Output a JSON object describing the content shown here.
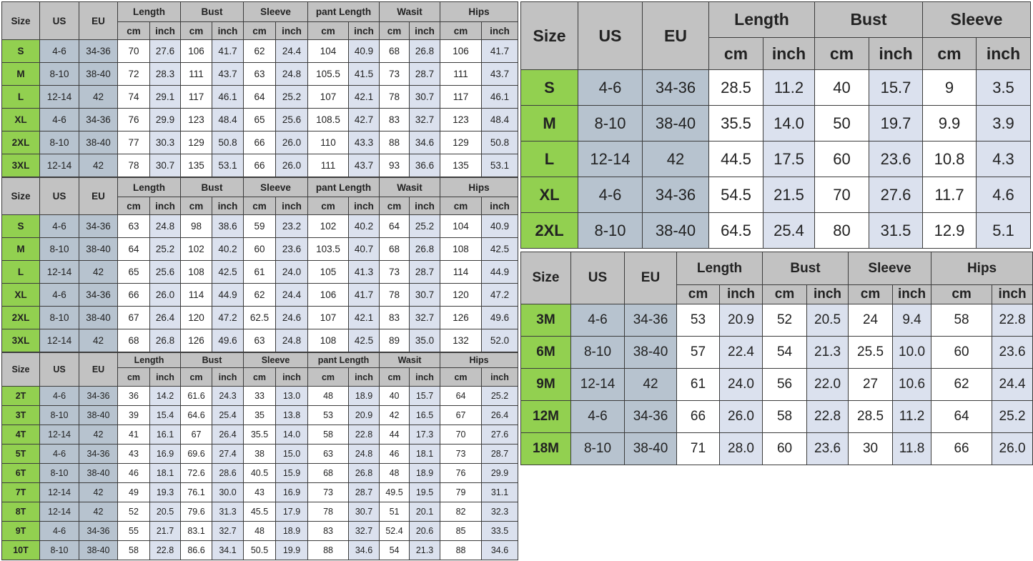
{
  "colors": {
    "header_bg": "#c2c2c2",
    "size_column_green": "#92d050",
    "us_eu_column_blue": "#b7c3cf",
    "cm_column_white": "#ffffff",
    "inch_column_blue": "#dbe1ee",
    "border": "#3c3c3c",
    "text": "#222222"
  },
  "tables": [
    {
      "id": "women-1",
      "base_headers": [
        "Size",
        "US",
        "EU"
      ],
      "groups": [
        "Length",
        "Bust",
        "Sleeve",
        "pant Length",
        "Wasit",
        "Hips"
      ],
      "unit_headers": [
        "cm",
        "inch"
      ],
      "rows": [
        {
          "size": "S",
          "us": "4-6",
          "eu": "34-36",
          "values": [
            "70",
            "27.6",
            "106",
            "41.7",
            "62",
            "24.4",
            "104",
            "40.9",
            "68",
            "26.8",
            "106",
            "41.7"
          ]
        },
        {
          "size": "M",
          "us": "8-10",
          "eu": "38-40",
          "values": [
            "72",
            "28.3",
            "111",
            "43.7",
            "63",
            "24.8",
            "105.5",
            "41.5",
            "73",
            "28.7",
            "111",
            "43.7"
          ]
        },
        {
          "size": "L",
          "us": "12-14",
          "eu": "42",
          "values": [
            "74",
            "29.1",
            "117",
            "46.1",
            "64",
            "25.2",
            "107",
            "42.1",
            "78",
            "30.7",
            "117",
            "46.1"
          ]
        },
        {
          "size": "XL",
          "us": "4-6",
          "eu": "34-36",
          "values": [
            "76",
            "29.9",
            "123",
            "48.4",
            "65",
            "25.6",
            "108.5",
            "42.7",
            "83",
            "32.7",
            "123",
            "48.4"
          ]
        },
        {
          "size": "2XL",
          "us": "8-10",
          "eu": "38-40",
          "values": [
            "77",
            "30.3",
            "129",
            "50.8",
            "66",
            "26.0",
            "110",
            "43.3",
            "88",
            "34.6",
            "129",
            "50.8"
          ]
        },
        {
          "size": "3XL",
          "us": "12-14",
          "eu": "42",
          "values": [
            "78",
            "30.7",
            "135",
            "53.1",
            "66",
            "26.0",
            "111",
            "43.7",
            "93",
            "36.6",
            "135",
            "53.1"
          ]
        }
      ]
    },
    {
      "id": "women-2",
      "base_headers": [
        "Size",
        "US",
        "EU"
      ],
      "groups": [
        "Length",
        "Bust",
        "Sleeve",
        "pant Length",
        "Wasit",
        "Hips"
      ],
      "unit_headers": [
        "cm",
        "inch"
      ],
      "rows": [
        {
          "size": "S",
          "us": "4-6",
          "eu": "34-36",
          "values": [
            "63",
            "24.8",
            "98",
            "38.6",
            "59",
            "23.2",
            "102",
            "40.2",
            "64",
            "25.2",
            "104",
            "40.9"
          ]
        },
        {
          "size": "M",
          "us": "8-10",
          "eu": "38-40",
          "values": [
            "64",
            "25.2",
            "102",
            "40.2",
            "60",
            "23.6",
            "103.5",
            "40.7",
            "68",
            "26.8",
            "108",
            "42.5"
          ]
        },
        {
          "size": "L",
          "us": "12-14",
          "eu": "42",
          "values": [
            "65",
            "25.6",
            "108",
            "42.5",
            "61",
            "24.0",
            "105",
            "41.3",
            "73",
            "28.7",
            "114",
            "44.9"
          ]
        },
        {
          "size": "XL",
          "us": "4-6",
          "eu": "34-36",
          "values": [
            "66",
            "26.0",
            "114",
            "44.9",
            "62",
            "24.4",
            "106",
            "41.7",
            "78",
            "30.7",
            "120",
            "47.2"
          ]
        },
        {
          "size": "2XL",
          "us": "8-10",
          "eu": "38-40",
          "values": [
            "67",
            "26.4",
            "120",
            "47.2",
            "62.5",
            "24.6",
            "107",
            "42.1",
            "83",
            "32.7",
            "126",
            "49.6"
          ]
        },
        {
          "size": "3XL",
          "us": "12-14",
          "eu": "42",
          "values": [
            "68",
            "26.8",
            "126",
            "49.6",
            "63",
            "24.8",
            "108",
            "42.5",
            "89",
            "35.0",
            "132",
            "52.0"
          ]
        }
      ]
    },
    {
      "id": "toddler",
      "base_headers": [
        "Size",
        "US",
        "EU"
      ],
      "groups": [
        "Length",
        "Bust",
        "Sleeve",
        "pant Length",
        "Wasit",
        "Hips"
      ],
      "unit_headers": [
        "cm",
        "inch"
      ],
      "rows": [
        {
          "size": "2T",
          "us": "4-6",
          "eu": "34-36",
          "values": [
            "36",
            "14.2",
            "61.6",
            "24.3",
            "33",
            "13.0",
            "48",
            "18.9",
            "40",
            "15.7",
            "64",
            "25.2"
          ]
        },
        {
          "size": "3T",
          "us": "8-10",
          "eu": "38-40",
          "values": [
            "39",
            "15.4",
            "64.6",
            "25.4",
            "35",
            "13.8",
            "53",
            "20.9",
            "42",
            "16.5",
            "67",
            "26.4"
          ]
        },
        {
          "size": "4T",
          "us": "12-14",
          "eu": "42",
          "values": [
            "41",
            "16.1",
            "67",
            "26.4",
            "35.5",
            "14.0",
            "58",
            "22.8",
            "44",
            "17.3",
            "70",
            "27.6"
          ]
        },
        {
          "size": "5T",
          "us": "4-6",
          "eu": "34-36",
          "values": [
            "43",
            "16.9",
            "69.6",
            "27.4",
            "38",
            "15.0",
            "63",
            "24.8",
            "46",
            "18.1",
            "73",
            "28.7"
          ]
        },
        {
          "size": "6T",
          "us": "8-10",
          "eu": "38-40",
          "values": [
            "46",
            "18.1",
            "72.6",
            "28.6",
            "40.5",
            "15.9",
            "68",
            "26.8",
            "48",
            "18.9",
            "76",
            "29.9"
          ]
        },
        {
          "size": "7T",
          "us": "12-14",
          "eu": "42",
          "values": [
            "49",
            "19.3",
            "76.1",
            "30.0",
            "43",
            "16.9",
            "73",
            "28.7",
            "49.5",
            "19.5",
            "79",
            "31.1"
          ]
        },
        {
          "size": "8T",
          "us": "12-14",
          "eu": "42",
          "values": [
            "52",
            "20.5",
            "79.6",
            "31.3",
            "45.5",
            "17.9",
            "78",
            "30.7",
            "51",
            "20.1",
            "82",
            "32.3"
          ]
        },
        {
          "size": "9T",
          "us": "4-6",
          "eu": "34-36",
          "values": [
            "55",
            "21.7",
            "83.1",
            "32.7",
            "48",
            "18.9",
            "83",
            "32.7",
            "52.4",
            "20.6",
            "85",
            "33.5"
          ]
        },
        {
          "size": "10T",
          "us": "8-10",
          "eu": "38-40",
          "values": [
            "58",
            "22.8",
            "86.6",
            "34.1",
            "50.5",
            "19.9",
            "88",
            "34.6",
            "54",
            "21.3",
            "88",
            "34.6"
          ]
        }
      ]
    },
    {
      "id": "adult-right",
      "base_headers": [
        "Size",
        "US",
        "EU"
      ],
      "groups": [
        "Length",
        "Bust",
        "Sleeve"
      ],
      "unit_headers": [
        "cm",
        "inch"
      ],
      "rows": [
        {
          "size": "S",
          "us": "4-6",
          "eu": "34-36",
          "values": [
            "28.5",
            "11.2",
            "40",
            "15.7",
            "9",
            "3.5"
          ]
        },
        {
          "size": "M",
          "us": "8-10",
          "eu": "38-40",
          "values": [
            "35.5",
            "14.0",
            "50",
            "19.7",
            "9.9",
            "3.9"
          ]
        },
        {
          "size": "L",
          "us": "12-14",
          "eu": "42",
          "values": [
            "44.5",
            "17.5",
            "60",
            "23.6",
            "10.8",
            "4.3"
          ]
        },
        {
          "size": "XL",
          "us": "4-6",
          "eu": "34-36",
          "values": [
            "54.5",
            "21.5",
            "70",
            "27.6",
            "11.7",
            "4.6"
          ]
        },
        {
          "size": "2XL",
          "us": "8-10",
          "eu": "38-40",
          "values": [
            "64.5",
            "25.4",
            "80",
            "31.5",
            "12.9",
            "5.1"
          ]
        }
      ]
    },
    {
      "id": "baby",
      "base_headers": [
        "Size",
        "US",
        "EU"
      ],
      "groups": [
        "Length",
        "Bust",
        "Sleeve",
        "Hips"
      ],
      "unit_headers": [
        "cm",
        "inch"
      ],
      "rows": [
        {
          "size": "3M",
          "us": "4-6",
          "eu": "34-36",
          "values": [
            "53",
            "20.9",
            "52",
            "20.5",
            "24",
            "9.4",
            "58",
            "22.8"
          ]
        },
        {
          "size": "6M",
          "us": "8-10",
          "eu": "38-40",
          "values": [
            "57",
            "22.4",
            "54",
            "21.3",
            "25.5",
            "10.0",
            "60",
            "23.6"
          ]
        },
        {
          "size": "9M",
          "us": "12-14",
          "eu": "42",
          "values": [
            "61",
            "24.0",
            "56",
            "22.0",
            "27",
            "10.6",
            "62",
            "24.4"
          ]
        },
        {
          "size": "12M",
          "us": "4-6",
          "eu": "34-36",
          "values": [
            "66",
            "26.0",
            "58",
            "22.8",
            "28.5",
            "11.2",
            "64",
            "25.2"
          ]
        },
        {
          "size": "18M",
          "us": "8-10",
          "eu": "38-40",
          "values": [
            "71",
            "28.0",
            "60",
            "23.6",
            "30",
            "11.8",
            "66",
            "26.0"
          ]
        }
      ]
    }
  ]
}
